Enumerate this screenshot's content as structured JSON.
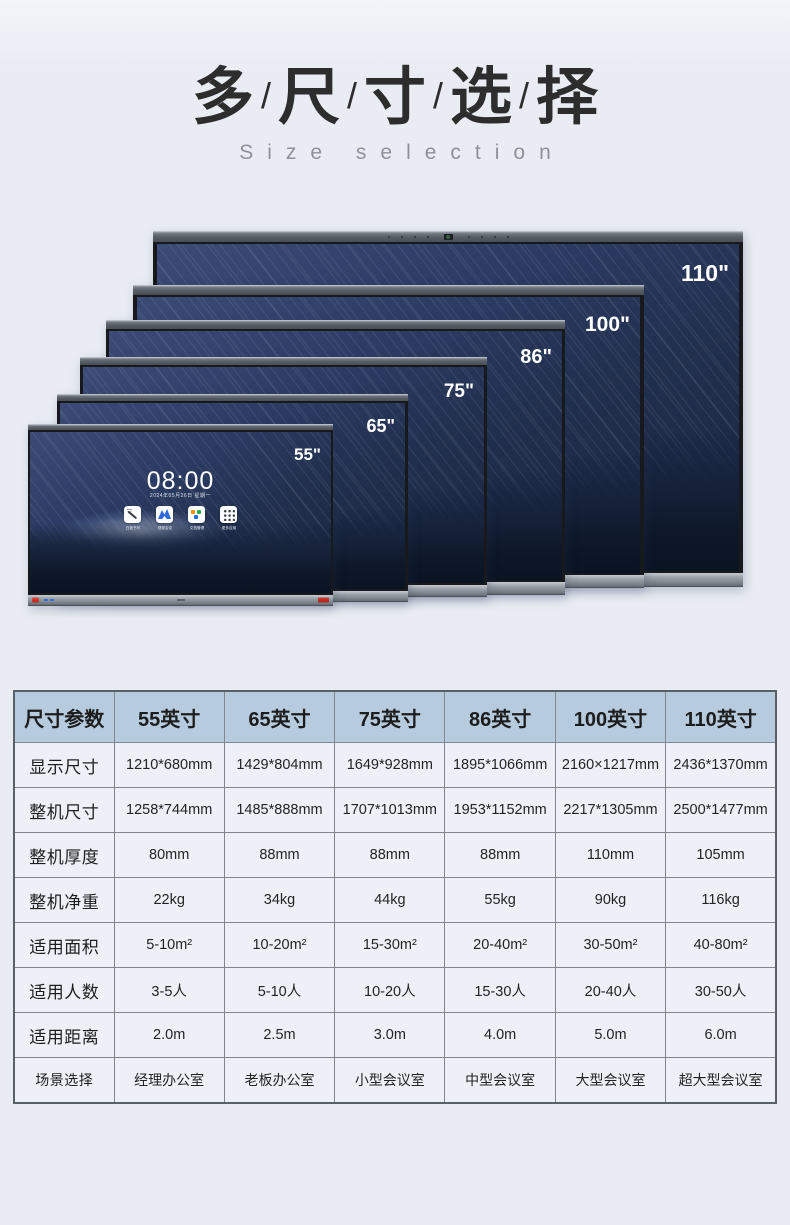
{
  "header": {
    "title_chars": [
      "多",
      "尺",
      "寸",
      "选",
      "择"
    ],
    "separator": "/",
    "subtitle": "Size selection"
  },
  "monitors": {
    "wallpaper_clock": "08:00",
    "wallpaper_date": "2024年05月26日 星期一",
    "app_icons": [
      {
        "icon": "whiteboard-icon",
        "label": "白板书写"
      },
      {
        "icon": "meeting-icon",
        "label": "视频会议"
      },
      {
        "icon": "files-icon",
        "label": "文档管理"
      },
      {
        "icon": "more-apps-icon",
        "label": "更多应用"
      }
    ],
    "items": [
      {
        "size_label": "110\""
      },
      {
        "size_label": "100\""
      },
      {
        "size_label": "86\""
      },
      {
        "size_label": "75\""
      },
      {
        "size_label": "65\""
      },
      {
        "size_label": "55\""
      }
    ]
  },
  "spec_table": {
    "header": [
      "尺寸参数",
      "55英寸",
      "65英寸",
      "75英寸",
      "86英寸",
      "100英寸",
      "110英寸"
    ],
    "rows": [
      {
        "label": "显示尺寸",
        "values": [
          "1210*680mm",
          "1429*804mm",
          "1649*928mm",
          "1895*1066mm",
          "2160×1217mm",
          "2436*1370mm"
        ]
      },
      {
        "label": "整机尺寸",
        "values": [
          "1258*744mm",
          "1485*888mm",
          "1707*1013mm",
          "1953*1152mm",
          "2217*1305mm",
          "2500*1477mm"
        ]
      },
      {
        "label": "整机厚度",
        "values": [
          "80mm",
          "88mm",
          "88mm",
          "88mm",
          "110mm",
          "105mm"
        ]
      },
      {
        "label": "整机净重",
        "values": [
          "22kg",
          "34kg",
          "44kg",
          "55kg",
          "90kg",
          "116kg"
        ]
      },
      {
        "label": "适用面积",
        "values": [
          "5-10m²",
          "10-20m²",
          "15-30m²",
          "20-40m²",
          "30-50m²",
          "40-80m²"
        ]
      },
      {
        "label": "适用人数",
        "values": [
          "3-5人",
          "5-10人",
          "10-20人",
          "15-30人",
          "20-40人",
          "30-50人"
        ]
      },
      {
        "label": "适用距离",
        "values": [
          "2.0m",
          "2.5m",
          "3.0m",
          "4.0m",
          "5.0m",
          "6.0m"
        ]
      },
      {
        "label": "场景选择",
        "values": [
          "经理办公室",
          "老板办公室",
          "小型会议室",
          "中型会议室",
          "大型会议室",
          "超大型会议室"
        ]
      }
    ]
  },
  "colors": {
    "page_bg": "#e9edf3",
    "title_text": "#2d2d2d",
    "subtitle_text": "#8d9298",
    "table_header_bg": "#b6cbde",
    "table_border": "#80868e",
    "screen_navy": "#22304f",
    "size_label_text": "#ffffff"
  }
}
